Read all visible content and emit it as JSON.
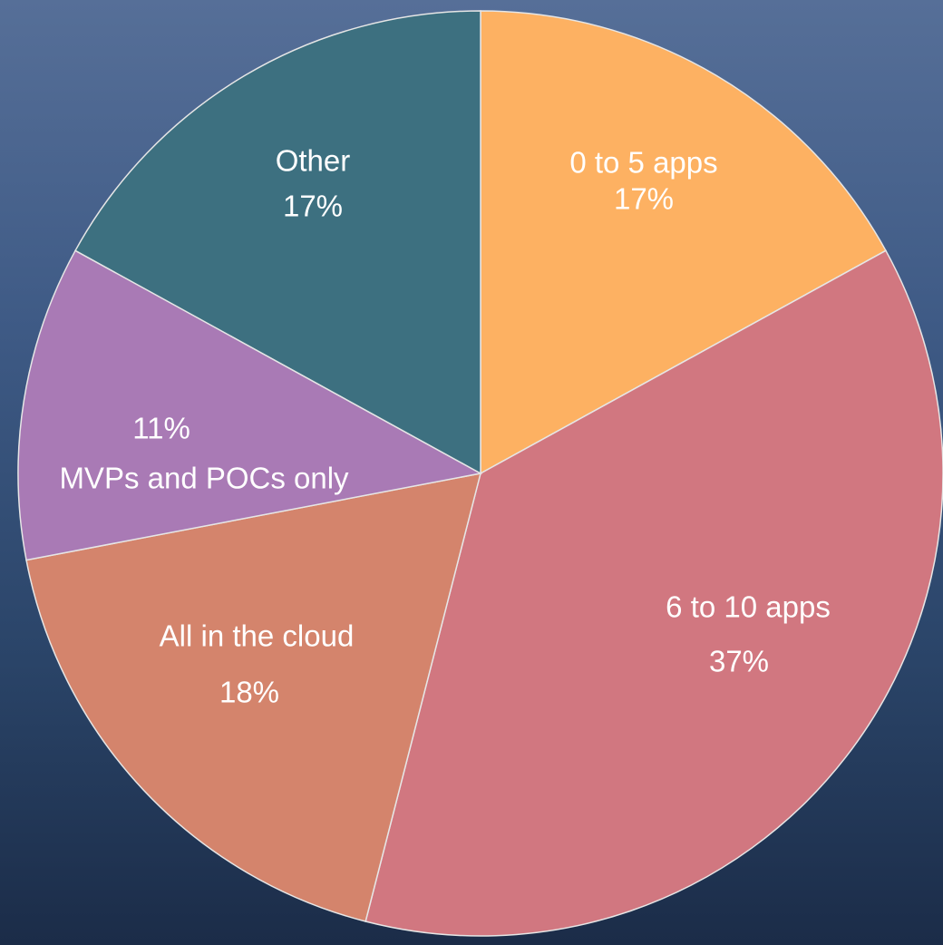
{
  "chart_data": {
    "type": "pie",
    "categories": [
      "0 to 5 apps",
      "6 to 10 apps",
      "All in the cloud",
      "MVPs and POCs only",
      "Other"
    ],
    "values": [
      17,
      37,
      18,
      11,
      17
    ],
    "value_labels": [
      "17%",
      "37%",
      "18%",
      "11%",
      "17%"
    ],
    "colors": [
      "#fdb162",
      "#d17780",
      "#d4846c",
      "#a97ab5",
      "#3d7080"
    ]
  }
}
